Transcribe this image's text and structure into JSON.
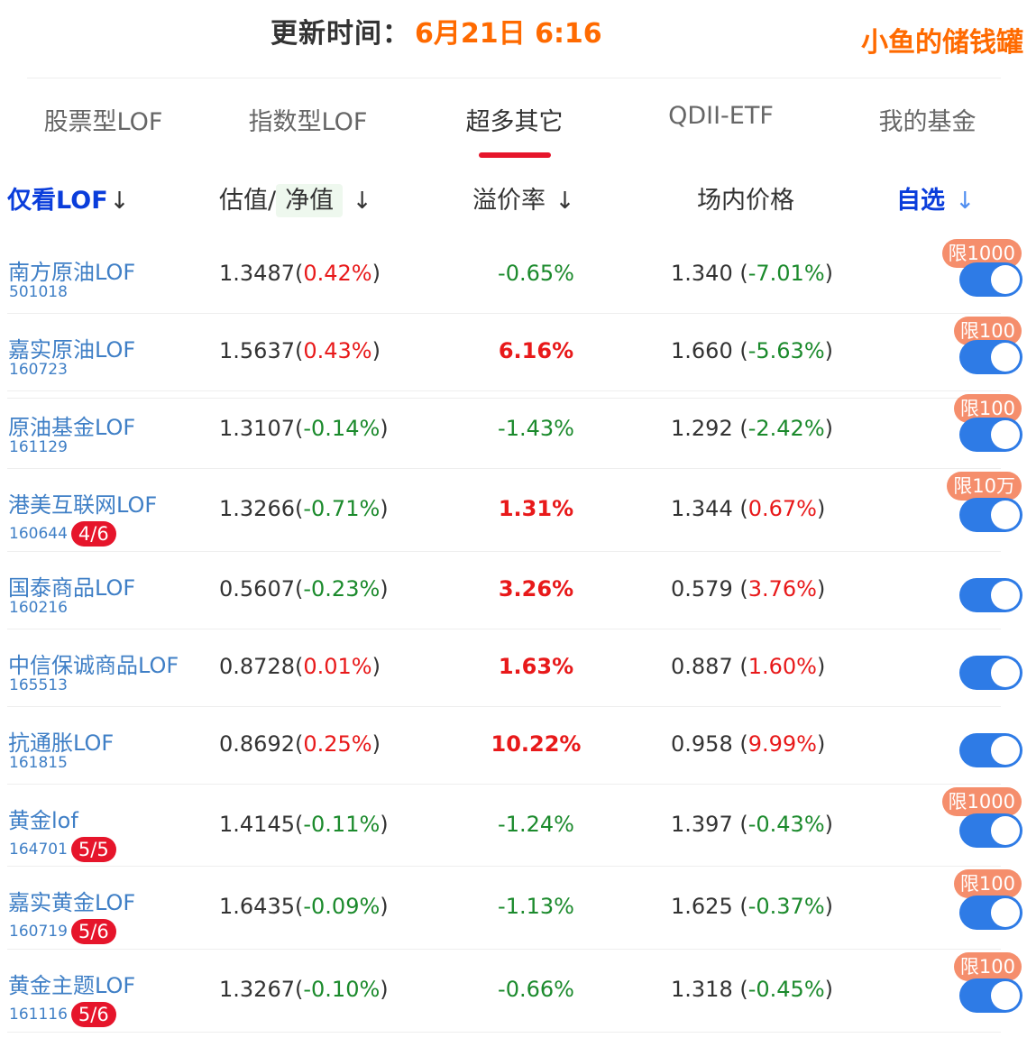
{
  "header": {
    "update_label": "更新时间：",
    "update_time": "6月21日 6:16",
    "brand": "小鱼的储钱罐"
  },
  "tabs": [
    {
      "label": "股票型LOF",
      "active": false
    },
    {
      "label": "指数型LOF",
      "active": false
    },
    {
      "label": "超多其它",
      "active": true
    },
    {
      "label": "QDII-ETF",
      "active": false
    },
    {
      "label": "我的基金",
      "active": false
    }
  ],
  "columns": {
    "filter_label": "仅看LOF",
    "filter_arrow": "↓",
    "nav_prefix": "估值/",
    "nav_label": "净值",
    "nav_arrow": "↓",
    "premium_label": "溢价率",
    "premium_arrow": "↓",
    "price_label": "场内价格",
    "fav_label": "自选",
    "fav_arrow": "↓"
  },
  "colors": {
    "accent_orange": "#ff6a00",
    "up_red": "#e8191a",
    "down_green": "#1b8a2c",
    "link_blue": "#3f7fc6",
    "toggle_blue": "#2e7be6",
    "limit_orange": "#f58e6c",
    "badge_red": "#e6152b"
  },
  "rows": [
    {
      "name": "南方原油LOF",
      "code": "501018",
      "badge": "",
      "nav": "1.3487",
      "nav_change": "0.42%",
      "nav_dir": "up",
      "premium": "-0.65%",
      "premium_dir": "down",
      "premium_bold": false,
      "price": "1.340",
      "price_change": "-7.01%",
      "price_dir": "down",
      "limit": "限1000",
      "favorite": true
    },
    {
      "name": "嘉实原油LOF",
      "code": "160723",
      "badge": "",
      "nav": "1.5637",
      "nav_change": "0.43%",
      "nav_dir": "up",
      "premium": "6.16%",
      "premium_dir": "up",
      "premium_bold": true,
      "price": "1.660",
      "price_change": "-5.63%",
      "price_dir": "down",
      "limit": "限100",
      "favorite": true
    },
    {
      "name": "原油基金LOF",
      "code": "161129",
      "badge": "",
      "nav": "1.3107",
      "nav_change": "-0.14%",
      "nav_dir": "down",
      "premium": "-1.43%",
      "premium_dir": "down",
      "premium_bold": false,
      "price": "1.292",
      "price_change": "-2.42%",
      "price_dir": "down",
      "limit": "限100",
      "favorite": true
    },
    {
      "name": "港美互联网LOF",
      "code": "160644",
      "badge": "4/6",
      "nav": "1.3266",
      "nav_change": "-0.71%",
      "nav_dir": "down",
      "premium": "1.31%",
      "premium_dir": "up",
      "premium_bold": true,
      "price": "1.344",
      "price_change": "0.67%",
      "price_dir": "up",
      "limit": "限10万",
      "favorite": true
    },
    {
      "name": "国泰商品LOF",
      "code": "160216",
      "badge": "",
      "nav": "0.5607",
      "nav_change": "-0.23%",
      "nav_dir": "down",
      "premium": "3.26%",
      "premium_dir": "up",
      "premium_bold": true,
      "price": "0.579",
      "price_change": "3.76%",
      "price_dir": "up",
      "limit": "",
      "favorite": true
    },
    {
      "name": "中信保诚商品LOF",
      "code": "165513",
      "badge": "",
      "nav": "0.8728",
      "nav_change": "0.01%",
      "nav_dir": "up",
      "premium": "1.63%",
      "premium_dir": "up",
      "premium_bold": true,
      "price": "0.887",
      "price_change": "1.60%",
      "price_dir": "up",
      "limit": "",
      "favorite": true
    },
    {
      "name": "抗通胀LOF",
      "code": "161815",
      "badge": "",
      "nav": "0.8692",
      "nav_change": "0.25%",
      "nav_dir": "up",
      "premium": "10.22%",
      "premium_dir": "up",
      "premium_bold": true,
      "price": "0.958",
      "price_change": "9.99%",
      "price_dir": "up",
      "limit": "",
      "favorite": true
    },
    {
      "name": "黄金lof",
      "code": "164701",
      "badge": "5/5",
      "nav": "1.4145",
      "nav_change": "-0.11%",
      "nav_dir": "down",
      "premium": "-1.24%",
      "premium_dir": "down",
      "premium_bold": false,
      "price": "1.397",
      "price_change": "-0.43%",
      "price_dir": "down",
      "limit": "限1000",
      "favorite": true
    },
    {
      "name": "嘉实黄金LOF",
      "code": "160719",
      "badge": "5/6",
      "nav": "1.6435",
      "nav_change": "-0.09%",
      "nav_dir": "down",
      "premium": "-1.13%",
      "premium_dir": "down",
      "premium_bold": false,
      "price": "1.625",
      "price_change": "-0.37%",
      "price_dir": "down",
      "limit": "限100",
      "favorite": true
    },
    {
      "name": "黄金主题LOF",
      "code": "161116",
      "badge": "5/6",
      "nav": "1.3267",
      "nav_change": "-0.10%",
      "nav_dir": "down",
      "premium": "-0.66%",
      "premium_dir": "down",
      "premium_bold": false,
      "price": "1.318",
      "price_change": "-0.45%",
      "price_dir": "down",
      "limit": "限100",
      "favorite": true
    }
  ]
}
